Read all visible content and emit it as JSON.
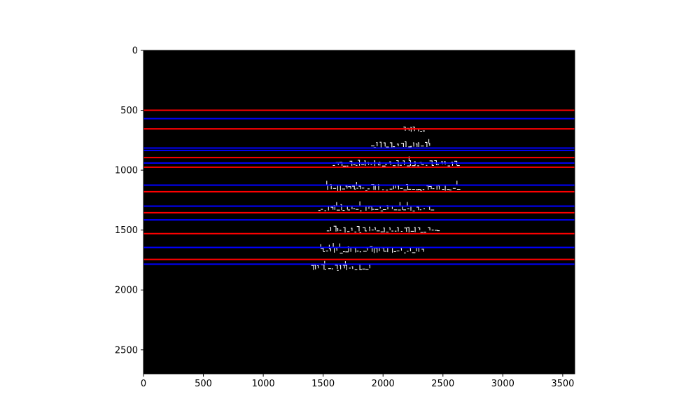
{
  "chart_data": {
    "type": "image",
    "xlim": [
      0,
      3600
    ],
    "ylim": [
      2700,
      0
    ],
    "xticks": [
      0,
      500,
      1000,
      1500,
      2000,
      2500,
      3000,
      3500
    ],
    "yticks": [
      0,
      500,
      1000,
      1500,
      2000,
      2500
    ],
    "grid": false,
    "background_color": "#000000",
    "red_line_color": "#ff0000",
    "blue_line_color": "#0000ff",
    "red_lines_y": [
      500,
      655,
      895,
      975,
      1180,
      1355,
      1530,
      1745
    ],
    "blue_lines_y": [
      570,
      815,
      835,
      940,
      1125,
      1300,
      1415,
      1645,
      1785
    ],
    "text_lines": [
      {
        "y": 660,
        "x_start": 2170,
        "x_end": 2350
      },
      {
        "y": 790,
        "x_start": 1900,
        "x_end": 2400
      },
      {
        "y": 945,
        "x_start": 1580,
        "x_end": 2620
      },
      {
        "y": 1145,
        "x_start": 1530,
        "x_end": 2640
      },
      {
        "y": 1315,
        "x_start": 1460,
        "x_end": 2400
      },
      {
        "y": 1495,
        "x_start": 1530,
        "x_end": 2470
      },
      {
        "y": 1665,
        "x_start": 1480,
        "x_end": 2330
      },
      {
        "y": 1810,
        "x_start": 1400,
        "x_end": 1900
      }
    ]
  }
}
